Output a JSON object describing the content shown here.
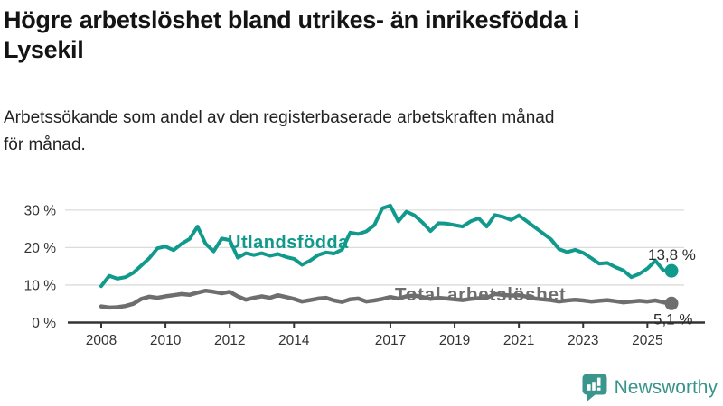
{
  "header": {
    "title_lines": [
      "Högre arbetslöshet bland utrikes- än inrikesfödda i",
      "Lysekil"
    ],
    "subtitle_lines": [
      "Arbetssökande som andel av den registerbaserade arbetskraften månad",
      "för månad."
    ]
  },
  "branding": {
    "name": "Newsworthy",
    "icon": "newsworthy-speech-bubble-bar-chart-icon",
    "color": "#38948b"
  },
  "colors": {
    "series_foreign_born": "#119a8c",
    "series_total": "#6e6e6e",
    "grid": "#dcdcdc",
    "axis": "#333333",
    "tick_text": "#333333",
    "end_label_text": "#2b2b2b",
    "background": "#ffffff"
  },
  "chart_data": {
    "type": "line",
    "x_start": 2008.0,
    "x_step": 0.25,
    "x_end": 2025.75,
    "x_ticks": [
      2008,
      2010,
      2012,
      2014,
      2017,
      2019,
      2021,
      2023,
      2025
    ],
    "y_ticks": [
      0,
      10,
      20,
      30
    ],
    "y_tick_suffix": " %",
    "ylim": [
      0,
      33
    ],
    "grid": "horizontal",
    "legend_position": "inline-labels",
    "series": [
      {
        "name": "Utlandsfödda",
        "color": "#119a8c",
        "end_value": 13.8,
        "end_label": "13,8 %",
        "values": [
          9.7,
          12.5,
          11.7,
          12.1,
          13.3,
          15.2,
          17.2,
          19.8,
          20.3,
          19.3,
          21.0,
          22.3,
          25.6,
          21.0,
          19.0,
          22.4,
          22.0,
          17.3,
          18.5,
          18.0,
          18.5,
          17.8,
          18.3,
          17.5,
          17.0,
          15.4,
          16.5,
          18.0,
          18.7,
          18.4,
          19.5,
          24.0,
          23.6,
          24.3,
          26.0,
          30.5,
          31.2,
          27.0,
          29.6,
          28.6,
          26.7,
          24.4,
          26.5,
          26.4,
          26.0,
          25.6,
          27.0,
          27.8,
          25.6,
          28.7,
          28.2,
          27.4,
          28.6,
          27.0,
          25.4,
          23.8,
          22.2,
          19.6,
          18.8,
          19.4,
          18.6,
          17.2,
          15.7,
          15.9,
          14.8,
          13.9,
          12.1,
          13.0,
          14.4,
          16.5,
          13.9,
          13.8
        ]
      },
      {
        "name": "Total arbetslöshet",
        "color": "#6e6e6e",
        "end_value": 5.1,
        "end_label": "5,1 %",
        "values": [
          4.3,
          4.0,
          4.1,
          4.4,
          5.0,
          6.3,
          6.9,
          6.6,
          7.0,
          7.3,
          7.6,
          7.4,
          8.0,
          8.5,
          8.2,
          7.8,
          8.2,
          7.0,
          6.1,
          6.6,
          7.0,
          6.6,
          7.3,
          6.8,
          6.3,
          5.6,
          6.0,
          6.4,
          6.6,
          5.9,
          5.5,
          6.2,
          6.4,
          5.6,
          5.9,
          6.3,
          6.8,
          6.4,
          7.0,
          7.2,
          6.8,
          6.3,
          6.6,
          6.4,
          6.2,
          6.0,
          6.3,
          6.5,
          6.6,
          7.6,
          7.4,
          7.2,
          7.3,
          6.9,
          6.4,
          6.2,
          6.0,
          5.6,
          5.9,
          6.1,
          5.9,
          5.6,
          5.8,
          6.0,
          5.7,
          5.4,
          5.6,
          5.8,
          5.6,
          5.9,
          5.4,
          5.1
        ]
      }
    ]
  }
}
